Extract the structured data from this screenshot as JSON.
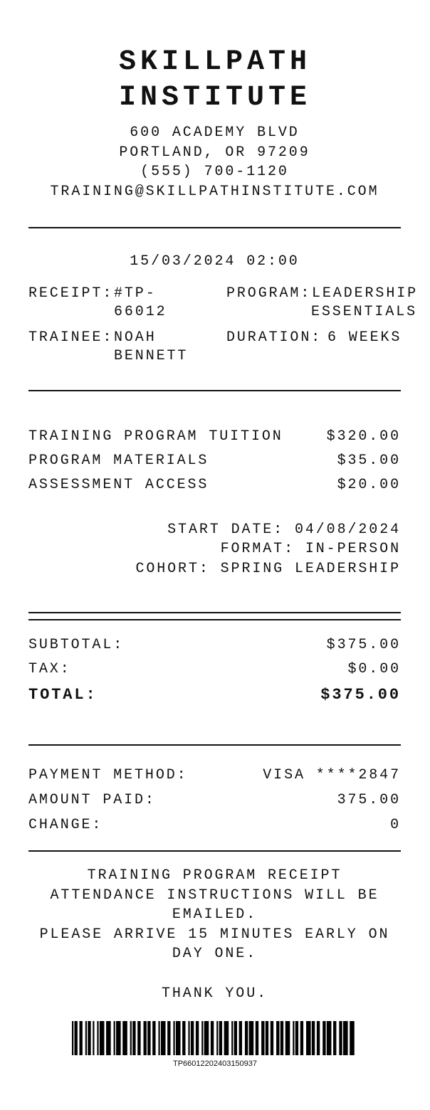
{
  "store": {
    "name_line1": "SKILLPATH",
    "name_line2": "INSTITUTE",
    "address1": "600 ACADEMY BLVD",
    "address2": "PORTLAND, OR 97209",
    "phone": "(555) 700-1120",
    "email": "TRAINING@SKILLPATHINSTITUTE.COM"
  },
  "datetime": "15/03/2024 02:00",
  "info": {
    "receipt_label": "RECEIPT:",
    "receipt_value_1": "#TP-",
    "receipt_value_2": "66012",
    "program_label": "PROGRAM:",
    "program_value_1": "LEADERSHIP",
    "program_value_2": "ESSENTIALS",
    "trainee_label": "TRAINEE:",
    "trainee_value_1": "NOAH",
    "trainee_value_2": "BENNETT",
    "duration_label": "DURATION:",
    "duration_value": "6 WEEKS"
  },
  "items": [
    {
      "name": "TRAINING PROGRAM TUITION",
      "price": "$320.00"
    },
    {
      "name": "PROGRAM MATERIALS",
      "price": "$35.00"
    },
    {
      "name": "ASSESSMENT ACCESS",
      "price": "$20.00"
    }
  ],
  "details": [
    "START DATE: 04/08/2024",
    "FORMAT: IN-PERSON",
    "COHORT: SPRING LEADERSHIP"
  ],
  "totals": {
    "subtotal_label": "SUBTOTAL:",
    "subtotal": "$375.00",
    "tax_label": "TAX:",
    "tax": "$0.00",
    "total_label": "TOTAL:",
    "total": "$375.00"
  },
  "payment": {
    "method_label": "PAYMENT METHOD:",
    "method": "VISA ****2847",
    "paid_label": "AMOUNT PAID:",
    "paid": "375.00",
    "change_label": "CHANGE:",
    "change": "0"
  },
  "footer": [
    "TRAINING PROGRAM RECEIPT",
    "ATTENDANCE INSTRUCTIONS WILL BE",
    "EMAILED.",
    "PLEASE ARRIVE 15 MINUTES EARLY ON",
    "DAY ONE."
  ],
  "thanks": "THANK YOU.",
  "barcode": "TP66012202403150937"
}
